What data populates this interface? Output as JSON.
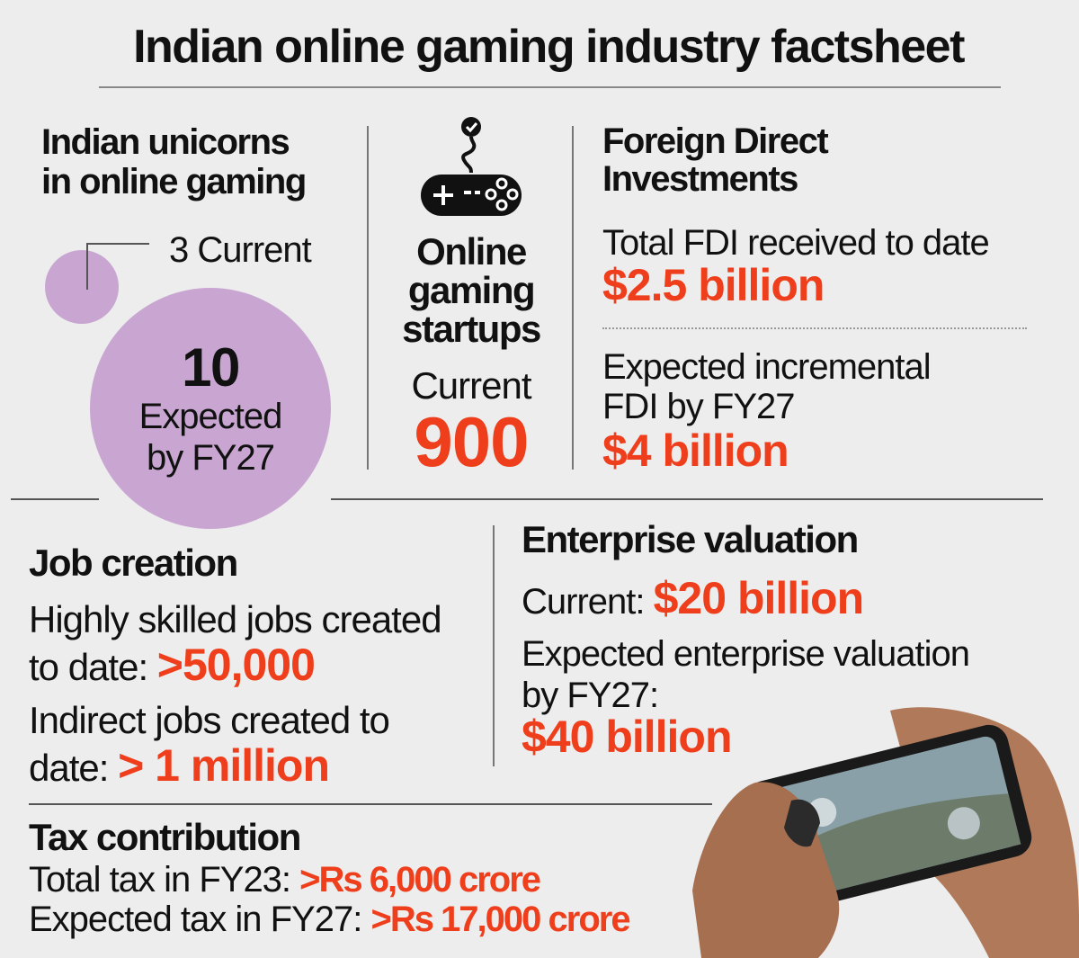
{
  "title": "Indian online gaming industry factsheet",
  "colors": {
    "accent": "#ef3e1c",
    "bubble": "#c9a6d2",
    "background": "#ededed"
  },
  "unicorns": {
    "heading_line1": "Indian unicorns",
    "heading_line2": "in online gaming",
    "current_label": "3 Current",
    "current_value": 3,
    "expected_value": "10",
    "expected_line1": "Expected",
    "expected_line2": "by FY27"
  },
  "startups": {
    "icon": "game-controller-icon",
    "heading_line1": "Online",
    "heading_line2": "gaming",
    "heading_line3": "startups",
    "current_label": "Current",
    "current_value": "900"
  },
  "fdi": {
    "heading_line1": "Foreign Direct",
    "heading_line2": "Investments",
    "total_label": "Total FDI received to date",
    "total_value": "$2.5 billion",
    "expected_line1": "Expected incremental",
    "expected_line2": "FDI by FY27",
    "expected_value": "$4 billion"
  },
  "jobs": {
    "heading": "Job creation",
    "skilled_line1": "Highly skilled jobs created",
    "skilled_line2": "to date:",
    "skilled_value": ">50,000",
    "indirect_line1": "Indirect jobs created to",
    "indirect_line2": "date:",
    "indirect_value": "> 1 million"
  },
  "valuation": {
    "heading": "Enterprise valuation",
    "current_label": "Current:",
    "current_value": "$20 billion",
    "expected_line1": "Expected enterprise valuation",
    "expected_line2": "by FY27:",
    "expected_value": "$40 billion"
  },
  "tax": {
    "heading": "Tax contribution",
    "total_label": "Total tax in FY23:",
    "total_value": ">Rs 6,000 crore",
    "expected_label": "Expected tax in FY27:",
    "expected_value": ">Rs 17,000 crore"
  }
}
